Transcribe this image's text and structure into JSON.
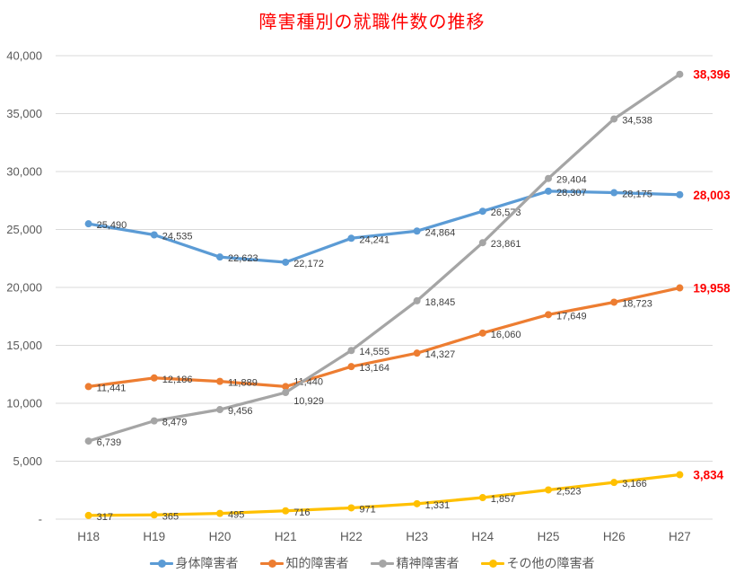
{
  "title": "障害種別の就職件数の推移",
  "chart_data": {
    "type": "line",
    "title": "障害種別の就職件数の推移",
    "categories": [
      "H18",
      "H19",
      "H20",
      "H21",
      "H22",
      "H23",
      "H24",
      "H25",
      "H26",
      "H27"
    ],
    "series": [
      {
        "name": "身体障害者",
        "color": "#5B9BD5",
        "values": [
          25490,
          24535,
          22623,
          22172,
          24241,
          24864,
          26573,
          28307,
          28175,
          28003
        ]
      },
      {
        "name": "知的障害者",
        "color": "#ED7D31",
        "values": [
          11441,
          12186,
          11889,
          11440,
          13164,
          14327,
          16060,
          17649,
          18723,
          19958
        ]
      },
      {
        "name": "精神障害者",
        "color": "#A5A5A5",
        "values": [
          6739,
          8479,
          9456,
          10929,
          14555,
          18845,
          23861,
          29404,
          34538,
          38396
        ]
      },
      {
        "name": "その他の障害者",
        "color": "#FFC000",
        "values": [
          317,
          365,
          495,
          716,
          971,
          1331,
          1857,
          2523,
          3166,
          3834
        ]
      }
    ],
    "ylim": [
      0,
      40000
    ],
    "y_tick_interval": 5000,
    "y_tick_labels": [
      "40,000",
      "35,000",
      "30,000",
      "25,000",
      "20,000",
      "15,000",
      "10,000",
      "5,000",
      "-"
    ],
    "grid": true,
    "legend_position": "bottom",
    "colors": {
      "title": "#FF0000",
      "final_label": "#FF0000",
      "data_label": "#404040",
      "axis_text": "#595959",
      "gridline": "#D9D9D9"
    }
  }
}
